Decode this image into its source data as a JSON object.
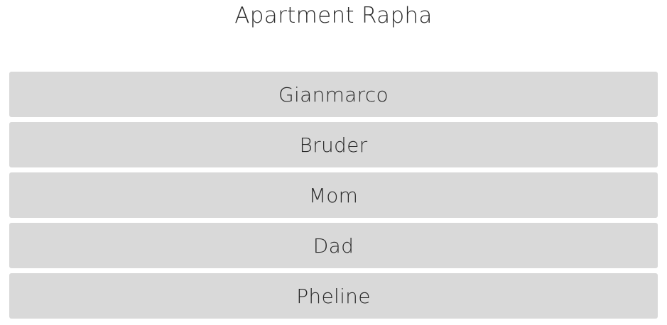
{
  "header": {
    "title": "Apartment Rapha"
  },
  "contacts": [
    {
      "label": "Gianmarco"
    },
    {
      "label": "Bruder"
    },
    {
      "label": "Mom"
    },
    {
      "label": "Dad"
    },
    {
      "label": "Pheline"
    }
  ],
  "colors": {
    "background": "#ffffff",
    "button_background": "#d9d9d9",
    "text": "#2a2a2a"
  }
}
